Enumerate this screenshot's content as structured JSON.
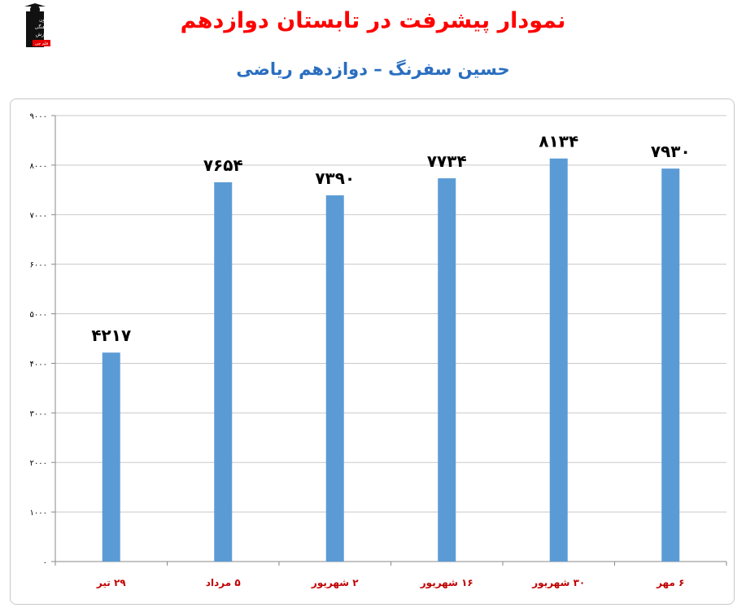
{
  "page": {
    "title": "نمودار پیشرفت در تابستان دوازدهم",
    "subtitle": "حسین سفرنگ – دوازدهم ریاضی",
    "logo": {
      "line1": "کانون",
      "line2": "فرهنگی",
      "line3": "آموزش",
      "badge": "قلم چی"
    }
  },
  "chart_data": {
    "type": "bar",
    "title": "",
    "xlabel": "",
    "ylabel": "",
    "categories": [
      "۲۹ تیر",
      "۵ مرداد",
      "۲ شهریور",
      "۱۶ شهریور",
      "۳۰ شهریور",
      "۶ مهر"
    ],
    "values": [
      4217,
      7654,
      7390,
      7734,
      8134,
      7930
    ],
    "data_labels": [
      "۴۲۱۷",
      "۷۶۵۴",
      "۷۳۹۰",
      "۷۷۳۴",
      "۸۱۳۴",
      "۷۹۳۰"
    ],
    "ylim": [
      0,
      9000
    ],
    "yticks": [
      0,
      1000,
      2000,
      3000,
      4000,
      5000,
      6000,
      7000,
      8000,
      9000
    ],
    "ytick_labels": [
      "۰",
      "۱۰۰۰",
      "۲۰۰۰",
      "۳۰۰۰",
      "۴۰۰۰",
      "۵۰۰۰",
      "۶۰۰۰",
      "۷۰۰۰",
      "۸۰۰۰",
      "۹۰۰۰"
    ],
    "grid": true,
    "legend": "none",
    "colors": {
      "bar": "#5b9bd5",
      "grid": "#c9c9c9",
      "xtick": "#c00000"
    }
  }
}
